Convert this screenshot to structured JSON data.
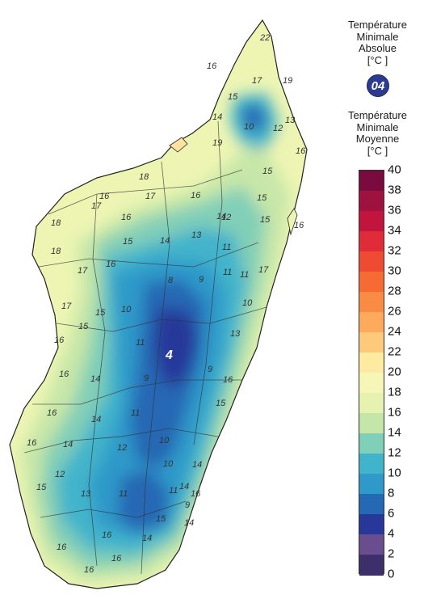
{
  "legend": {
    "absolute_title": [
      "Température",
      "Minimale",
      "Absolue",
      "[°C ]"
    ],
    "absolute_value": "04",
    "mean_title": [
      "Température",
      "Minimale",
      "Moyenne",
      "[°C ]"
    ],
    "scale": [
      {
        "value": "40",
        "color": "#7a0b3e"
      },
      {
        "value": "38",
        "color": "#9e1240"
      },
      {
        "value": "36",
        "color": "#c2153d"
      },
      {
        "value": "34",
        "color": "#e02b38"
      },
      {
        "value": "32",
        "color": "#ef4a32"
      },
      {
        "value": "30",
        "color": "#f66a34"
      },
      {
        "value": "28",
        "color": "#fa8b45"
      },
      {
        "value": "26",
        "color": "#fdaa5c"
      },
      {
        "value": "24",
        "color": "#fdc97a"
      },
      {
        "value": "22",
        "color": "#feeaa0"
      },
      {
        "value": "20",
        "color": "#f6f7b6"
      },
      {
        "value": "18",
        "color": "#e6f2b0"
      },
      {
        "value": "16",
        "color": "#c4e6a8"
      },
      {
        "value": "14",
        "color": "#80cfb8"
      },
      {
        "value": "12",
        "color": "#3fb4cb"
      },
      {
        "value": "10",
        "color": "#2f99c9"
      },
      {
        "value": "8",
        "color": "#2568b4"
      },
      {
        "value": "6",
        "color": "#28379a"
      },
      {
        "value": "4",
        "color": "#6a4d8f"
      },
      {
        "value": "2",
        "color": "#3c2f6a"
      },
      {
        "value": "0",
        "color": "#141c4f"
      }
    ]
  },
  "map": {
    "absolute_min_marker": "4",
    "contour_labels": [
      "22",
      "16",
      "17",
      "14",
      "19",
      "15",
      "13",
      "10",
      "12",
      "19",
      "16",
      "15",
      "18",
      "16",
      "16",
      "17",
      "16",
      "14",
      "15",
      "17",
      "16",
      "12",
      "15",
      "18",
      "17",
      "13",
      "16",
      "15",
      "14",
      "11",
      "11",
      "17",
      "18",
      "15",
      "8",
      "9",
      "17",
      "10",
      "11",
      "10",
      "15",
      "13",
      "11",
      "16",
      "9",
      "9",
      "14",
      "16",
      "11",
      "16",
      "14",
      "10",
      "15",
      "16",
      "12",
      "10",
      "14",
      "16",
      "14",
      "12",
      "15",
      "13",
      "11",
      "11",
      "15",
      "16",
      "9",
      "14",
      "14",
      "16",
      "14",
      "16",
      "16",
      "16"
    ]
  }
}
